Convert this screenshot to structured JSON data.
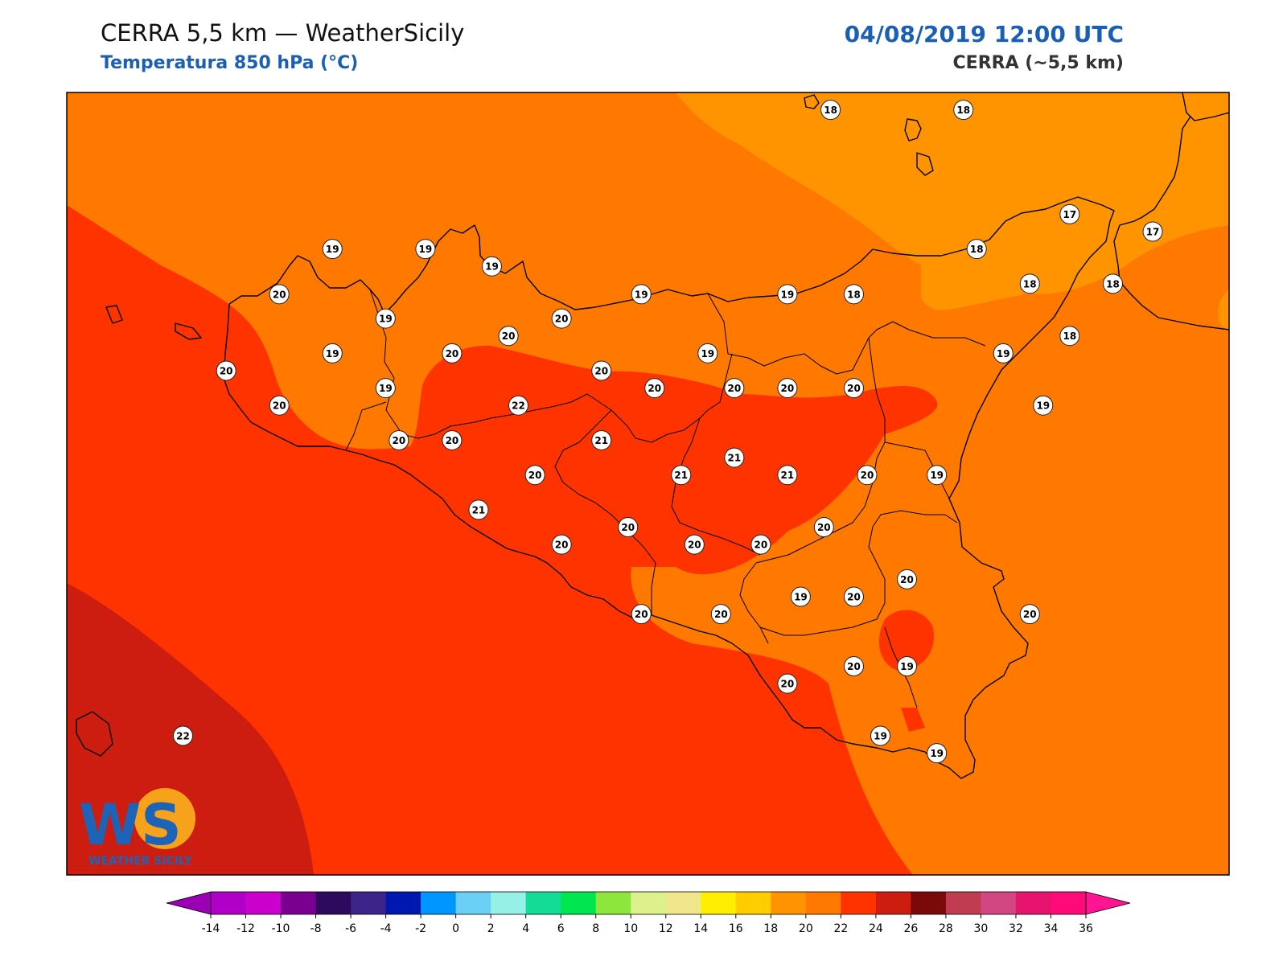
{
  "header": {
    "title": "CERRA 5,5 km — WeatherSicily",
    "subtitle": "Temperatura 850 hPa (°C)",
    "datetime": "04/08/2019 12:00 UTC",
    "model": "CERRA (~5,5 km)"
  },
  "logo": {
    "letters": "WS",
    "name": "WEATHER SICILY"
  },
  "colors": {
    "t17_18": "#ff9400",
    "t18_20": "#ff7800",
    "t20_22": "#ff3300",
    "t22_24": "#cc1d10",
    "coast": "#000000",
    "station_fill": "#ffffff"
  },
  "colorbar": {
    "ticks": [
      "-14",
      "-12",
      "-10",
      "-8",
      "-6",
      "-4",
      "-2",
      "0",
      "2",
      "4",
      "6",
      "8",
      "10",
      "12",
      "14",
      "16",
      "18",
      "20",
      "22",
      "24",
      "26",
      "28",
      "30",
      "32",
      "34",
      "36"
    ],
    "colors": [
      "#b000c8",
      "#cc00cc",
      "#7a0090",
      "#2e0a5e",
      "#3c2489",
      "#0018b0",
      "#0096ff",
      "#6ccff6",
      "#96f0e6",
      "#14dc96",
      "#00e650",
      "#8ce63c",
      "#dcf08c",
      "#f0e68c",
      "#ffee00",
      "#ffcc00",
      "#ff9400",
      "#ff7800",
      "#ff3300",
      "#cc1d10",
      "#7a0a0a",
      "#c03c50",
      "#d24682",
      "#e6146e",
      "#ff0a78"
    ],
    "min_color": "#9a00b4",
    "max_color": "#ff1493"
  },
  "stations": [
    {
      "label": "18",
      "lon": 14.85,
      "lat": 38.75
    },
    {
      "label": "18",
      "lon": 15.25,
      "lat": 38.75
    },
    {
      "label": "17",
      "lon": 15.57,
      "lat": 38.45
    },
    {
      "label": "17",
      "lon": 15.82,
      "lat": 38.4
    },
    {
      "label": "19",
      "lon": 13.35,
      "lat": 38.35
    },
    {
      "label": "19",
      "lon": 13.63,
      "lat": 38.35
    },
    {
      "label": "19",
      "lon": 13.83,
      "lat": 38.3
    },
    {
      "label": "18",
      "lon": 15.29,
      "lat": 38.35
    },
    {
      "label": "18",
      "lon": 15.45,
      "lat": 38.25
    },
    {
      "label": "18",
      "lon": 15.7,
      "lat": 38.25
    },
    {
      "label": "20",
      "lon": 13.19,
      "lat": 38.22
    },
    {
      "label": "19",
      "lon": 14.28,
      "lat": 38.22
    },
    {
      "label": "19",
      "lon": 14.72,
      "lat": 38.22
    },
    {
      "label": "18",
      "lon": 14.92,
      "lat": 38.22
    },
    {
      "label": "19",
      "lon": 13.51,
      "lat": 38.15
    },
    {
      "label": "20",
      "lon": 14.04,
      "lat": 38.15
    },
    {
      "label": "20",
      "lon": 13.88,
      "lat": 38.1
    },
    {
      "label": "18",
      "lon": 15.57,
      "lat": 38.1
    },
    {
      "label": "19",
      "lon": 13.35,
      "lat": 38.05
    },
    {
      "label": "20",
      "lon": 13.71,
      "lat": 38.05
    },
    {
      "label": "19",
      "lon": 14.48,
      "lat": 38.05
    },
    {
      "label": "19",
      "lon": 15.37,
      "lat": 38.05
    },
    {
      "label": "20",
      "lon": 13.03,
      "lat": 38.0
    },
    {
      "label": "20",
      "lon": 14.16,
      "lat": 38.0
    },
    {
      "label": "19",
      "lon": 13.51,
      "lat": 37.95
    },
    {
      "label": "20",
      "lon": 14.32,
      "lat": 37.95
    },
    {
      "label": "20",
      "lon": 14.56,
      "lat": 37.95
    },
    {
      "label": "20",
      "lon": 14.72,
      "lat": 37.95
    },
    {
      "label": "20",
      "lon": 14.92,
      "lat": 37.95
    },
    {
      "label": "19",
      "lon": 15.49,
      "lat": 37.9
    },
    {
      "label": "20",
      "lon": 13.19,
      "lat": 37.9
    },
    {
      "label": "22",
      "lon": 13.91,
      "lat": 37.9
    },
    {
      "label": "20",
      "lon": 13.55,
      "lat": 37.8
    },
    {
      "label": "20",
      "lon": 13.71,
      "lat": 37.8
    },
    {
      "label": "21",
      "lon": 14.16,
      "lat": 37.8
    },
    {
      "label": "21",
      "lon": 14.56,
      "lat": 37.75
    },
    {
      "label": "21",
      "lon": 14.4,
      "lat": 37.7
    },
    {
      "label": "21",
      "lon": 14.72,
      "lat": 37.7
    },
    {
      "label": "20",
      "lon": 14.96,
      "lat": 37.7
    },
    {
      "label": "19",
      "lon": 15.17,
      "lat": 37.7
    },
    {
      "label": "20",
      "lon": 13.96,
      "lat": 37.7
    },
    {
      "label": "21",
      "lon": 13.79,
      "lat": 37.6
    },
    {
      "label": "20",
      "lon": 14.24,
      "lat": 37.55
    },
    {
      "label": "20",
      "lon": 14.83,
      "lat": 37.55
    },
    {
      "label": "20",
      "lon": 14.44,
      "lat": 37.5
    },
    {
      "label": "20",
      "lon": 14.64,
      "lat": 37.5
    },
    {
      "label": "20",
      "lon": 14.04,
      "lat": 37.5
    },
    {
      "label": "20",
      "lon": 15.08,
      "lat": 37.4
    },
    {
      "label": "19",
      "lon": 14.76,
      "lat": 37.35
    },
    {
      "label": "20",
      "lon": 14.92,
      "lat": 37.35
    },
    {
      "label": "20",
      "lon": 15.45,
      "lat": 37.3
    },
    {
      "label": "20",
      "lon": 14.28,
      "lat": 37.3
    },
    {
      "label": "20",
      "lon": 14.52,
      "lat": 37.3
    },
    {
      "label": "20",
      "lon": 14.92,
      "lat": 37.15
    },
    {
      "label": "19",
      "lon": 15.08,
      "lat": 37.15
    },
    {
      "label": "20",
      "lon": 14.72,
      "lat": 37.1
    },
    {
      "label": "19",
      "lon": 15.0,
      "lat": 36.95
    },
    {
      "label": "19",
      "lon": 15.17,
      "lat": 36.9
    },
    {
      "label": "22",
      "lon": 12.9,
      "lat": 36.95
    }
  ]
}
